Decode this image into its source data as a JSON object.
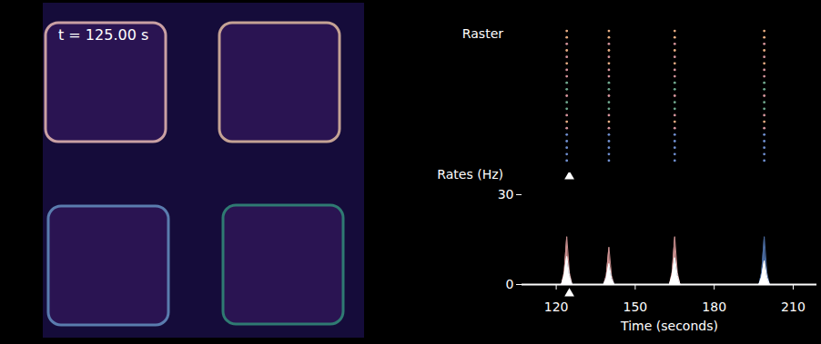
{
  "image_panel": {
    "time_label": "t = 125.00 s",
    "region_colors": [
      "#c9a0a3",
      "#c4a294",
      "#5a7cae",
      "#2f7a72"
    ]
  },
  "chart_data": [
    {
      "type": "raster",
      "title": "Raster",
      "current_time": 125,
      "spike_times": [
        124,
        140,
        165,
        199
      ],
      "neuron_colors": [
        "#e8ad82",
        "#e8ad82",
        "#d6949c",
        "#e8ad82",
        "#d6949c",
        "#e8ad82",
        "#d6949c",
        "#d6949c",
        "#6fa88e",
        "#6fa88e",
        "#d6949c",
        "#6fa88e",
        "#6fa88e",
        "#d6949c",
        "#e8ad82",
        "#d6949c",
        "#6f8fd0",
        "#6f8fd0",
        "#6f8fd0",
        "#6f8fd0",
        "#6f8fd0"
      ],
      "xlim": [
        107,
        219
      ]
    },
    {
      "type": "area",
      "title": "Rates (Hz)",
      "xlabel": "Time (seconds)",
      "current_time": 125,
      "x": [
        107,
        122,
        123,
        124,
        125,
        126,
        138,
        139,
        140,
        141,
        142,
        163,
        164,
        165,
        166,
        167,
        197,
        198,
        199,
        200,
        201,
        219
      ],
      "series": [
        {
          "color": "#c98f8f",
          "values": [
            0,
            0,
            4,
            16,
            4,
            0,
            0,
            3,
            12.5,
            3,
            0,
            0,
            4,
            16,
            4,
            0,
            0,
            2,
            6,
            2,
            0,
            0
          ]
        },
        {
          "color": "#4a6a9e",
          "values": [
            0,
            0,
            2,
            8,
            2,
            0,
            0,
            2,
            6,
            2,
            0,
            0,
            2,
            8,
            2,
            0,
            0,
            4,
            16,
            4,
            0,
            0
          ]
        },
        {
          "color": "#ffffff",
          "values": [
            0,
            0,
            3,
            9.4,
            3,
            0,
            0,
            2,
            7,
            2,
            0,
            0,
            3,
            9,
            3,
            0,
            0,
            2.5,
            8,
            2.5,
            0,
            0
          ]
        }
      ],
      "xlim": [
        107,
        219
      ],
      "xticks": [
        120,
        150,
        180,
        210
      ],
      "ylim": [
        0,
        30
      ],
      "yticks": [
        0,
        30
      ]
    }
  ]
}
